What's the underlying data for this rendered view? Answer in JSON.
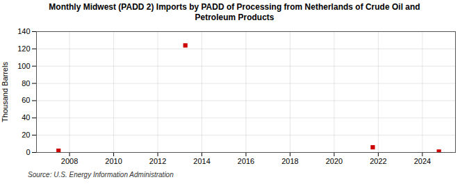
{
  "chart_data": {
    "type": "scatter",
    "title": "Monthly Midwest (PADD 2) Imports by PADD of Processing from Netherlands of Crude Oil and\nPetroleum Products",
    "ylabel": "Thousand Barrels",
    "source": "Source: U.S. Energy Information Administration",
    "x": [
      2007.5,
      2013.25,
      2021.75,
      2024.75
    ],
    "values": [
      2,
      124,
      6,
      1
    ],
    "color": "#cc0000",
    "marker": "square",
    "xlim": [
      2006.5,
      2025.5
    ],
    "xticks": [
      2008,
      2010,
      2012,
      2014,
      2016,
      2018,
      2020,
      2022,
      2024
    ],
    "ylim": [
      0,
      140
    ],
    "yticks": [
      0,
      20,
      40,
      60,
      80,
      100,
      120,
      140
    ],
    "grid": true
  }
}
